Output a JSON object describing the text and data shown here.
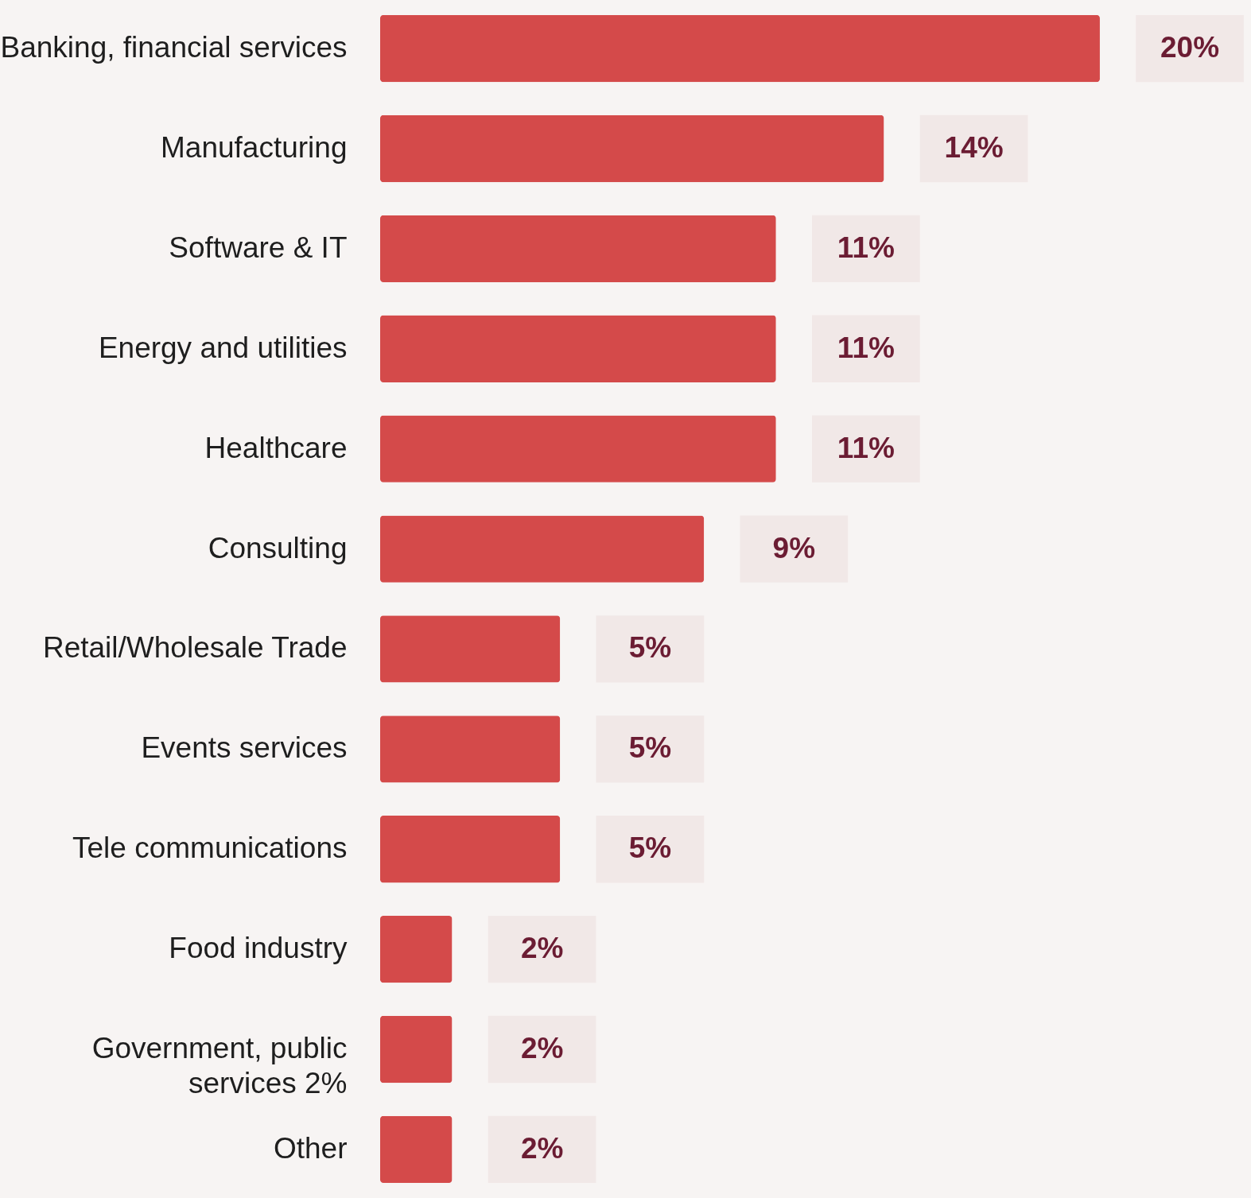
{
  "chart_data": {
    "type": "bar",
    "orientation": "horizontal",
    "categories": [
      "Banking, financial services",
      "Manufacturing",
      "Software & IT",
      "Energy and utilities",
      "Healthcare",
      "Consulting",
      "Retail/Wholesale Trade",
      "Events services",
      "Tele communications",
      "Food industry",
      "Government, public services 2%",
      "Other"
    ],
    "values": [
      20,
      14,
      11,
      11,
      11,
      9,
      5,
      5,
      5,
      2,
      2,
      2
    ],
    "value_labels": [
      "20%",
      "14%",
      "11%",
      "11%",
      "11%",
      "9%",
      "5%",
      "5%",
      "5%",
      "2%",
      "2%",
      "2%"
    ],
    "color": "#d44a4a",
    "grid": false
  }
}
